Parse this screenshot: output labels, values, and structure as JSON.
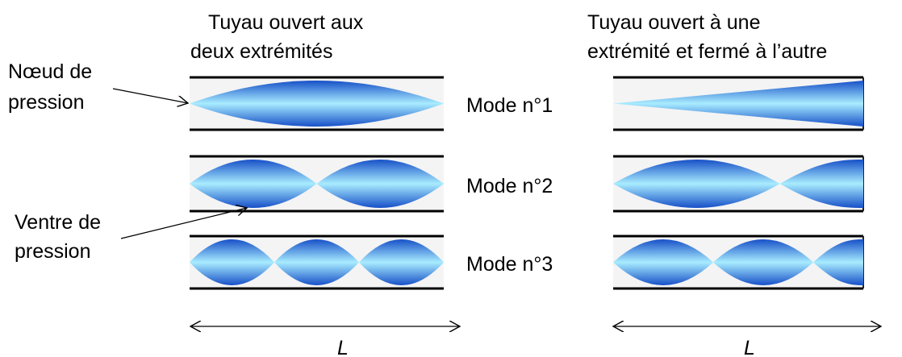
{
  "left_title": [
    "Tuyau ouvert aux",
    "deux extrémités"
  ],
  "right_title": [
    "Tuyau ouvert à une",
    "extrémité et fermé à l’autre"
  ],
  "node_label": [
    "Nœud de",
    "pression"
  ],
  "antinode_label": [
    "Ventre de",
    "pression"
  ],
  "modes": [
    "Mode n°1",
    "Mode n°2",
    "Mode n°3"
  ],
  "length_label": "L"
}
